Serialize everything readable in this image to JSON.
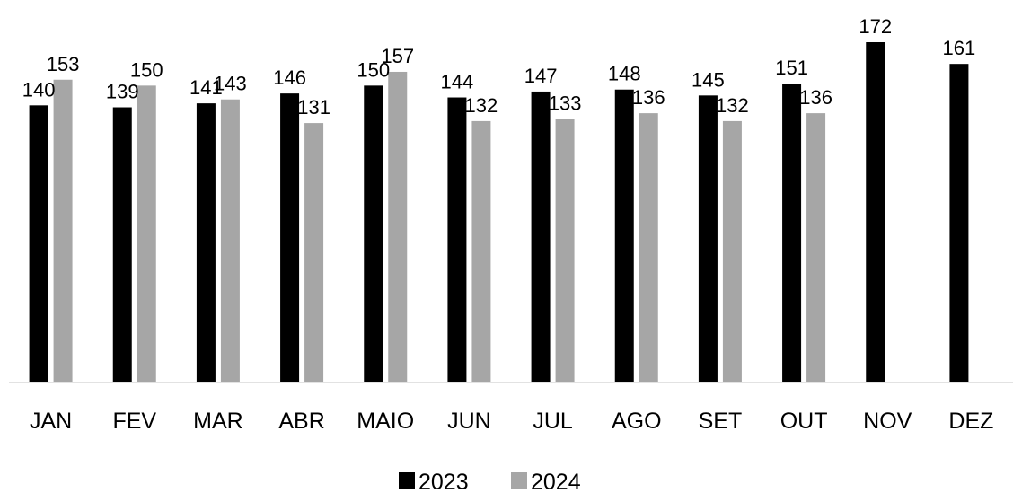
{
  "chart_data": {
    "type": "bar",
    "title": "",
    "xlabel": "",
    "ylabel": "",
    "categories": [
      "JAN",
      "FEV",
      "MAR",
      "ABR",
      "MAIO",
      "JUN",
      "JUL",
      "AGO",
      "SET",
      "OUT",
      "NOV",
      "DEZ"
    ],
    "series": [
      {
        "name": "2023",
        "color": "#000000",
        "values": [
          140,
          139,
          141,
          146,
          150,
          144,
          147,
          148,
          145,
          151,
          172,
          161
        ]
      },
      {
        "name": "2024",
        "color": "#A6A6A6",
        "values": [
          153,
          150,
          143,
          131,
          157,
          132,
          133,
          136,
          132,
          136,
          null,
          null
        ]
      }
    ],
    "ylim": [
      0,
      172
    ],
    "grid": false,
    "y_axis_visible": false,
    "data_labels": true,
    "legend_position": "bottom-center",
    "axis_line_color": "#D9D9D9",
    "label_color": "#000000"
  }
}
